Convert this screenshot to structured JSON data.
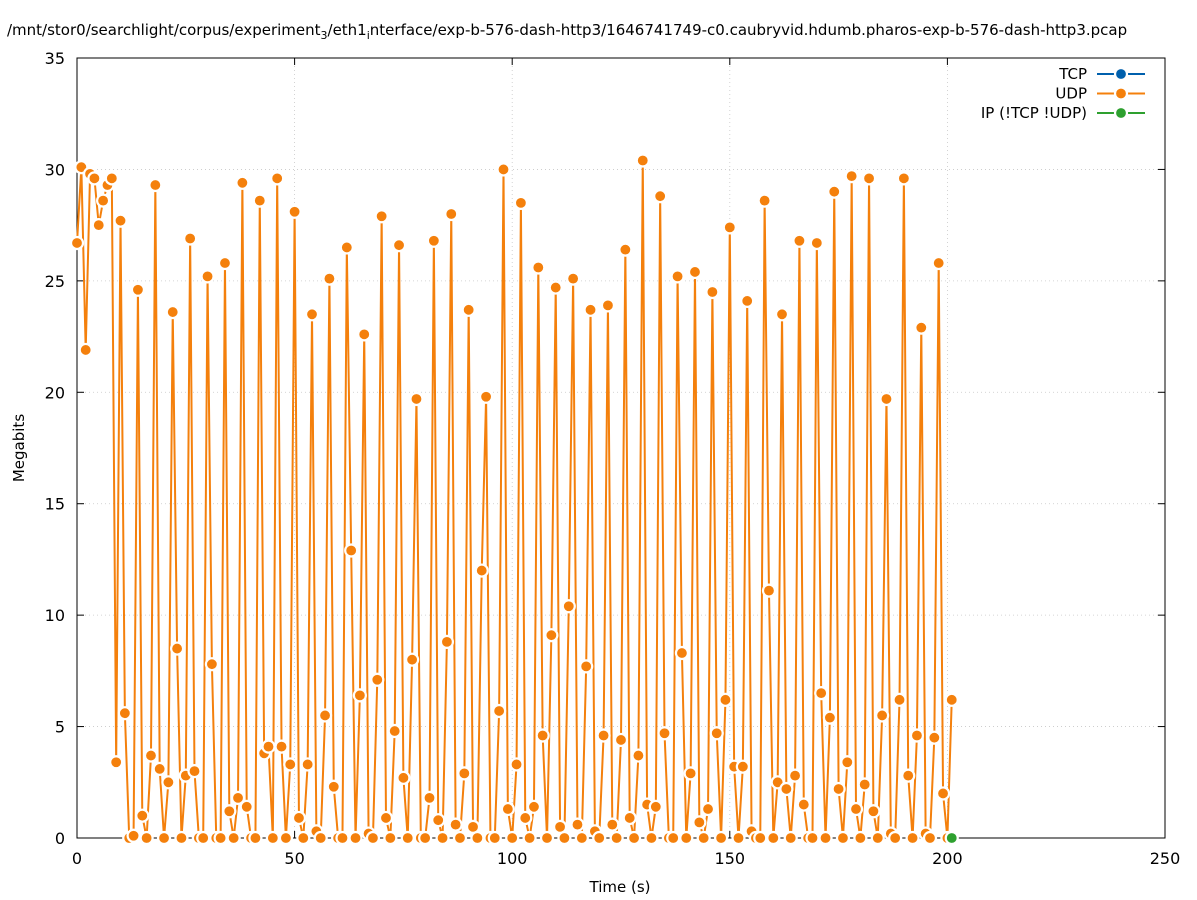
{
  "chart_data": {
    "type": "line",
    "title": "/mnt/stor0/searchlight/corpus/experiment",
    "title_sub1": "3",
    "title_mid": "/eth1",
    "title_sub2": "i",
    "title_end": "nterface/exp-b-576-dash-http3/1646741749-c0.caubryvid.hdumb.pharos-exp-b-576-dash-http3.pcap",
    "xlabel": "Time (s)",
    "ylabel": "Megabits",
    "xlim": [
      0,
      250
    ],
    "ylim": [
      0,
      35
    ],
    "x_ticks": [
      "0",
      "50",
      "100",
      "150",
      "200",
      "250"
    ],
    "y_ticks": [
      "0",
      "5",
      "10",
      "15",
      "20",
      "25",
      "30",
      "35"
    ],
    "grid": true,
    "legend_position": "top-right",
    "colors": {
      "tcp": "#0060ad",
      "udp": "#f4800c",
      "ip": "#2ea02f"
    },
    "series": [
      {
        "name": "TCP",
        "values": []
      },
      {
        "name": "UDP",
        "points": [
          [
            0,
            26.7
          ],
          [
            1,
            30.1
          ],
          [
            2,
            21.9
          ],
          [
            3,
            29.8
          ],
          [
            4,
            29.6
          ],
          [
            5,
            27.5
          ],
          [
            6,
            28.6
          ],
          [
            7,
            29.3
          ],
          [
            8,
            29.6
          ],
          [
            9,
            3.4
          ],
          [
            10,
            27.7
          ],
          [
            11,
            5.6
          ],
          [
            12,
            0
          ],
          [
            13,
            0.1
          ],
          [
            14,
            24.6
          ],
          [
            15,
            1.0
          ],
          [
            16,
            0
          ],
          [
            17,
            3.7
          ],
          [
            18,
            29.3
          ],
          [
            19,
            3.1
          ],
          [
            20,
            0
          ],
          [
            21,
            2.5
          ],
          [
            22,
            23.6
          ],
          [
            23,
            8.5
          ],
          [
            24,
            0
          ],
          [
            25,
            2.8
          ],
          [
            26,
            26.9
          ],
          [
            27,
            3.0
          ],
          [
            28,
            0
          ],
          [
            29,
            0
          ],
          [
            30,
            25.2
          ],
          [
            31,
            7.8
          ],
          [
            32,
            0
          ],
          [
            33,
            0
          ],
          [
            34,
            25.8
          ],
          [
            35,
            1.2
          ],
          [
            36,
            0
          ],
          [
            37,
            1.8
          ],
          [
            38,
            29.4
          ],
          [
            39,
            1.4
          ],
          [
            40,
            0
          ],
          [
            41,
            0
          ],
          [
            42,
            28.6
          ],
          [
            43,
            3.8
          ],
          [
            44,
            4.1
          ],
          [
            45,
            0
          ],
          [
            46,
            29.6
          ],
          [
            47,
            4.1
          ],
          [
            48,
            0
          ],
          [
            49,
            3.3
          ],
          [
            50,
            28.1
          ],
          [
            51,
            0.9
          ],
          [
            52,
            0
          ],
          [
            53,
            3.3
          ],
          [
            54,
            23.5
          ],
          [
            55,
            0.3
          ],
          [
            56,
            0
          ],
          [
            57,
            5.5
          ],
          [
            58,
            25.1
          ],
          [
            59,
            2.3
          ],
          [
            60,
            0
          ],
          [
            61,
            0
          ],
          [
            62,
            26.5
          ],
          [
            63,
            12.9
          ],
          [
            64,
            0
          ],
          [
            65,
            6.4
          ],
          [
            66,
            22.6
          ],
          [
            67,
            0.2
          ],
          [
            68,
            0
          ],
          [
            69,
            7.1
          ],
          [
            70,
            27.9
          ],
          [
            71,
            0.9
          ],
          [
            72,
            0
          ],
          [
            73,
            4.8
          ],
          [
            74,
            26.6
          ],
          [
            75,
            2.7
          ],
          [
            76,
            0
          ],
          [
            77,
            8.0
          ],
          [
            78,
            19.7
          ],
          [
            79,
            0
          ],
          [
            80,
            0
          ],
          [
            81,
            1.8
          ],
          [
            82,
            26.8
          ],
          [
            83,
            0.8
          ],
          [
            84,
            0
          ],
          [
            85,
            8.8
          ],
          [
            86,
            28.0
          ],
          [
            87,
            0.6
          ],
          [
            88,
            0
          ],
          [
            89,
            2.9
          ],
          [
            90,
            23.7
          ],
          [
            91,
            0.5
          ],
          [
            92,
            0
          ],
          [
            93,
            12.0
          ],
          [
            94,
            19.8
          ],
          [
            95,
            0
          ],
          [
            96,
            0
          ],
          [
            97,
            5.7
          ],
          [
            98,
            30.0
          ],
          [
            99,
            1.3
          ],
          [
            100,
            0
          ],
          [
            101,
            3.3
          ],
          [
            102,
            28.5
          ],
          [
            103,
            0.9
          ],
          [
            104,
            0
          ],
          [
            105,
            1.4
          ],
          [
            106,
            25.6
          ],
          [
            107,
            4.6
          ],
          [
            108,
            0
          ],
          [
            109,
            9.1
          ],
          [
            110,
            24.7
          ],
          [
            111,
            0.5
          ],
          [
            112,
            0
          ],
          [
            113,
            10.4
          ],
          [
            114,
            25.1
          ],
          [
            115,
            0.6
          ],
          [
            116,
            0
          ],
          [
            117,
            7.7
          ],
          [
            118,
            23.7
          ],
          [
            119,
            0.3
          ],
          [
            120,
            0
          ],
          [
            121,
            4.6
          ],
          [
            122,
            23.9
          ],
          [
            123,
            0.6
          ],
          [
            124,
            0
          ],
          [
            125,
            4.4
          ],
          [
            126,
            26.4
          ],
          [
            127,
            0.9
          ],
          [
            128,
            0
          ],
          [
            129,
            3.7
          ],
          [
            130,
            30.4
          ],
          [
            131,
            1.5
          ],
          [
            132,
            0
          ],
          [
            133,
            1.4
          ],
          [
            134,
            28.8
          ],
          [
            135,
            4.7
          ],
          [
            136,
            0
          ],
          [
            137,
            0
          ],
          [
            138,
            25.2
          ],
          [
            139,
            8.3
          ],
          [
            140,
            0
          ],
          [
            141,
            2.9
          ],
          [
            142,
            25.4
          ],
          [
            143,
            0.7
          ],
          [
            144,
            0
          ],
          [
            145,
            1.3
          ],
          [
            146,
            24.5
          ],
          [
            147,
            4.7
          ],
          [
            148,
            0
          ],
          [
            149,
            6.2
          ],
          [
            150,
            27.4
          ],
          [
            151,
            3.2
          ],
          [
            152,
            0
          ],
          [
            153,
            3.2
          ],
          [
            154,
            24.1
          ],
          [
            155,
            0.3
          ],
          [
            156,
            0
          ],
          [
            157,
            0
          ],
          [
            158,
            28.6
          ],
          [
            159,
            11.1
          ],
          [
            160,
            0
          ],
          [
            161,
            2.5
          ],
          [
            162,
            23.5
          ],
          [
            163,
            2.2
          ],
          [
            164,
            0
          ],
          [
            165,
            2.8
          ],
          [
            166,
            26.8
          ],
          [
            167,
            1.5
          ],
          [
            168,
            0
          ],
          [
            169,
            0
          ],
          [
            170,
            26.7
          ],
          [
            171,
            6.5
          ],
          [
            172,
            0
          ],
          [
            173,
            5.4
          ],
          [
            174,
            29.0
          ],
          [
            175,
            2.2
          ],
          [
            176,
            0
          ],
          [
            177,
            3.4
          ],
          [
            178,
            29.7
          ],
          [
            179,
            1.3
          ],
          [
            180,
            0
          ],
          [
            181,
            2.4
          ],
          [
            182,
            29.6
          ],
          [
            183,
            1.2
          ],
          [
            184,
            0
          ],
          [
            185,
            5.5
          ],
          [
            186,
            19.7
          ],
          [
            187,
            0.2
          ],
          [
            188,
            0
          ],
          [
            189,
            6.2
          ],
          [
            190,
            29.6
          ],
          [
            191,
            2.8
          ],
          [
            192,
            0
          ],
          [
            193,
            4.6
          ],
          [
            194,
            22.9
          ],
          [
            195,
            0.2
          ],
          [
            196,
            0
          ],
          [
            197,
            4.5
          ],
          [
            198,
            25.8
          ],
          [
            199,
            2.0
          ],
          [
            200,
            0
          ],
          [
            201,
            6.2
          ]
        ]
      },
      {
        "name": "IP (!TCP  !UDP)",
        "points": [
          [
            201,
            0
          ]
        ]
      }
    ]
  }
}
